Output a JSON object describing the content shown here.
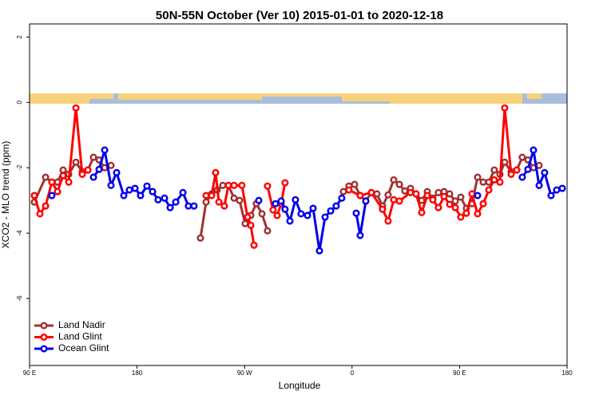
{
  "chart_data": {
    "type": "line",
    "title": "50N-55N October (Ver 10)   2015-01-01 to 2020-12-18",
    "x_label": "Longitude",
    "y_label": "XCO2 - MLO trend (ppm)",
    "xlim": [
      90,
      540
    ],
    "xticks": [
      {
        "value": 90,
        "label": "90 E"
      },
      {
        "value": 180,
        "label": "180"
      },
      {
        "value": 270,
        "label": "90 W"
      },
      {
        "value": 360,
        "label": "0"
      },
      {
        "value": 450,
        "label": "90 E"
      },
      {
        "value": 540,
        "label": "180"
      }
    ],
    "ylim": [
      -8.05,
      2.4
    ],
    "yticks": [
      -6,
      -4,
      -2,
      0,
      2
    ],
    "legend": "bottom-left",
    "series": [
      {
        "name": "Land Nadir",
        "color": "#a03232",
        "x": [
          94.0,
          103.4,
          108.7,
          113.4,
          118.1,
          122.8,
          128.8,
          134.1,
          138.8,
          143.5,
          148.2,
          152.9,
          158.2,
          200,
          233.1,
          237.8,
          242.4,
          247.1,
          251.8,
          256.5,
          261.2,
          265.8,
          270.5,
          275.2,
          279.9,
          284.6,
          289.2,
          320,
          352.8,
          357.4,
          362.1,
          366.8,
          371.5,
          376.2,
          380.8,
          385.5,
          390.2,
          394.9,
          399.6,
          404.2,
          408.9,
          413.6,
          418.3,
          423.0,
          427.6,
          432.3,
          437.0,
          441.7,
          446.4,
          451.0,
          455.7,
          460.4,
          465.1,
          469.8,
          474.5,
          479.1,
          483.8,
          487.8,
          493.2,
          497.9,
          502.5,
          507.2,
          511.9,
          516.6
        ],
        "values": [
          -3.05,
          -2.29,
          -2.44,
          -2.44,
          -2.07,
          -2.2,
          -1.83,
          -2.12,
          -2.07,
          -1.68,
          -1.76,
          -2.0,
          -1.93,
          null,
          -4.15,
          -3.05,
          -2.8,
          -2.68,
          -2.54,
          -2.54,
          -2.93,
          -3.0,
          -3.71,
          -3.46,
          -3.1,
          -3.41,
          -3.93,
          null,
          -2.73,
          -2.56,
          -2.51,
          -2.85,
          -3.02,
          -2.76,
          -2.8,
          -3.17,
          -2.83,
          -2.37,
          -2.51,
          -2.71,
          -2.63,
          -2.8,
          -3.0,
          -2.73,
          -2.93,
          -2.76,
          -2.73,
          -2.8,
          -3.02,
          -2.9,
          -3.24,
          -3.1,
          -2.29,
          -2.44,
          -2.44,
          -2.07,
          -2.2,
          -1.83,
          -2.12,
          -2.07,
          -1.68,
          -1.76,
          -2.0,
          -1.93
        ]
      },
      {
        "name": "Land Glint",
        "color": "#ff0000",
        "x": [
          94.0,
          98.7,
          103.4,
          108.7,
          113.4,
          118.1,
          122.8,
          128.8,
          134.1,
          138.8,
          200,
          237.8,
          242.4,
          245.8,
          248.5,
          253.1,
          256.5,
          261.2,
          267.8,
          272.5,
          275.2,
          277.9,
          282,
          289.2,
          293.9,
          297.3,
          300.6,
          303.9,
          330,
          357.4,
          366.8,
          376.2,
          385.5,
          390.2,
          394.9,
          399.6,
          408.9,
          413.6,
          418.3,
          423.0,
          427.6,
          432.3,
          437.0,
          441.7,
          446.4,
          451.0,
          455.7,
          460.4,
          465.1,
          469.8,
          474.5,
          479.1,
          483.8,
          487.8,
          493.2,
          497.9
        ],
        "values": [
          -2.85,
          -3.41,
          -3.17,
          -2.44,
          -2.73,
          -2.24,
          -2.44,
          -0.17,
          -2.2,
          -2.07,
          null,
          -2.85,
          -2.85,
          -2.15,
          -3.05,
          -3.17,
          -2.54,
          -2.54,
          -2.54,
          -3.51,
          -3.76,
          -4.37,
          null,
          -2.56,
          -3.29,
          -3.46,
          -3.1,
          -2.46,
          null,
          -2.68,
          -2.85,
          -2.76,
          -3.27,
          -3.63,
          -2.98,
          -3.02,
          -2.76,
          -2.8,
          -3.37,
          -2.85,
          -2.98,
          -3.22,
          -2.88,
          -3.12,
          -3.22,
          -3.51,
          -3.39,
          -2.8,
          -3.41,
          -3.1,
          -2.68,
          -2.37,
          -2.44,
          -0.17,
          -2.2,
          -2.07
        ]
      },
      {
        "name": "Ocean Glint",
        "color": "#0000ee",
        "x": [
          108.7,
          113,
          143.5,
          148.2,
          152.9,
          158.2,
          162.9,
          168.9,
          173.6,
          178.3,
          182.9,
          188.3,
          193.0,
          197.6,
          203.0,
          207.7,
          212.4,
          218.4,
          223.0,
          227.7,
          260,
          281.9,
          287,
          295.9,
          300.6,
          303.9,
          308.0,
          312.6,
          317.3,
          322.7,
          327.4,
          332.7,
          337.4,
          342.1,
          346.7,
          351.4,
          355,
          363.5,
          366.8,
          371.5,
          420,
          465.1,
          480,
          502.5,
          507.2,
          511.9,
          516.6,
          521.2,
          526.6,
          531.3,
          536.0
        ],
        "values": [
          -2.85,
          null,
          -2.29,
          -2.05,
          -1.46,
          -2.54,
          -2.15,
          -2.85,
          -2.68,
          -2.63,
          -2.85,
          -2.56,
          -2.73,
          -2.98,
          -2.93,
          -3.22,
          -3.05,
          -2.76,
          -3.17,
          -3.17,
          null,
          -3.0,
          null,
          -3.1,
          -3.02,
          -3.27,
          -3.63,
          -2.98,
          -3.41,
          -3.46,
          -3.24,
          -4.54,
          -3.51,
          -3.32,
          -3.17,
          -2.93,
          null,
          -3.39,
          -4.07,
          -3.02,
          null,
          -2.85,
          null,
          -2.29,
          -2.05,
          -1.46,
          -2.54,
          -2.15,
          -2.85,
          -2.68,
          -2.63
        ]
      }
    ]
  }
}
